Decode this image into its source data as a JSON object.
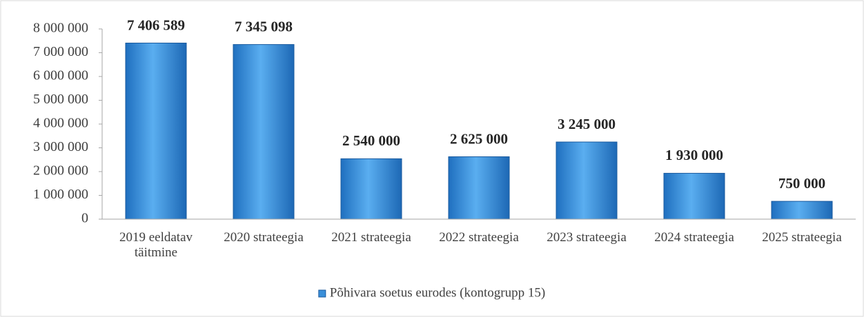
{
  "chart_data": {
    "type": "bar",
    "categories": [
      "2019 eeldatav täitmine",
      "2020 strateegia",
      "2021 strateegia",
      "2022 strateegia",
      "2023 strateegia",
      "2024 strateegia",
      "2025 strateegia"
    ],
    "series": [
      {
        "name": "Põhivara soetus eurodes (kontogrupp 15)",
        "color": "#3a8fd9",
        "values": [
          7406589,
          7345098,
          2540000,
          2625000,
          3245000,
          1930000,
          750000
        ],
        "value_labels": [
          "7 406 589",
          "7 345 098",
          "2 540 000",
          "2 625 000",
          "3 245 000",
          "1 930 000",
          "750 000"
        ]
      }
    ],
    "ylim": [
      0,
      8000000
    ],
    "yticks": [
      0,
      {
        "value": 1000000,
        "label": "1 000 000"
      },
      {
        "value": 2000000,
        "label": "2 000 000"
      },
      {
        "value": 3000000,
        "label": "3 000 000"
      },
      {
        "value": 4000000,
        "label": "4 000 000"
      },
      {
        "value": 5000000,
        "label": "5 000 000"
      },
      {
        "value": 6000000,
        "label": "6 000 000"
      },
      {
        "value": 7000000,
        "label": "7 000 000"
      },
      {
        "value": 8000000,
        "label": "8 000 000"
      }
    ],
    "legend": "bottom"
  }
}
